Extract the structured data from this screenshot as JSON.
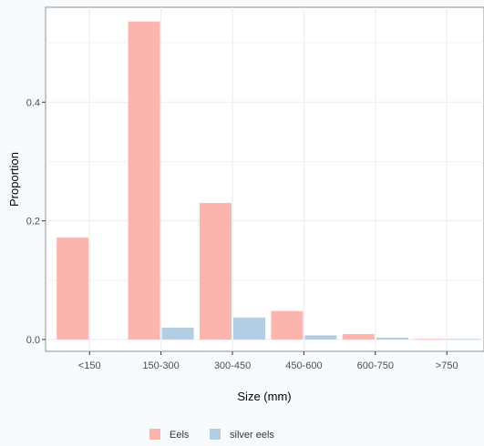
{
  "chart_data": {
    "type": "bar",
    "title": "",
    "xlabel": "Size (mm)",
    "ylabel": "Proportion",
    "categories": [
      "<150",
      "150-300",
      "300-450",
      "450-600",
      "600-750",
      ">750"
    ],
    "series": [
      {
        "name": "Eels",
        "values": [
          0.172,
          0.536,
          0.23,
          0.048,
          0.009,
          0.001
        ],
        "color": "#fbb4ae"
      },
      {
        "name": "silver eels",
        "values": [
          0.0,
          0.02,
          0.037,
          0.007,
          0.003,
          0.001
        ],
        "color": "#b3cde3"
      }
    ],
    "ylim": [
      -0.02,
      0.56
    ],
    "yticks": [
      0.0,
      0.2,
      0.4
    ],
    "ytick_labels": [
      "0.0",
      "0.2",
      "0.4"
    ],
    "grid": true,
    "legend_position": "bottom",
    "colors": {
      "background": "#f8fbfd",
      "panel": "#ffffff",
      "grid": "#ebebeb",
      "border": "#b3b3b3"
    }
  }
}
